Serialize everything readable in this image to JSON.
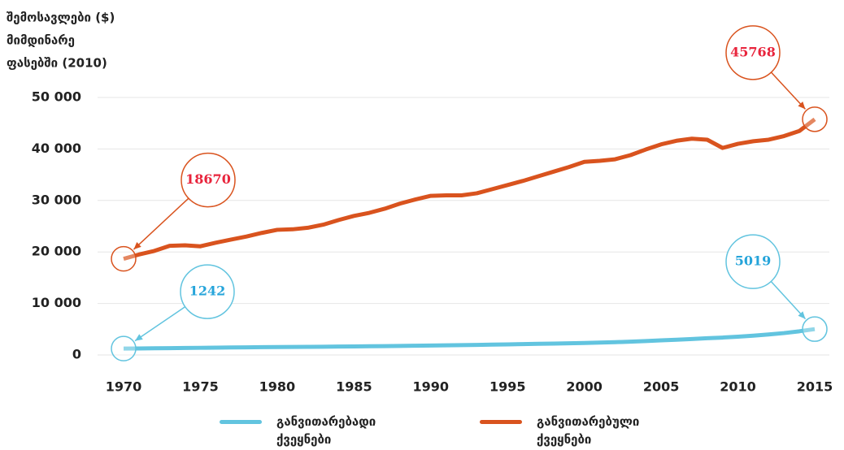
{
  "chart_data": {
    "type": "line",
    "ylabel": [
      "შემოსავლები ($)",
      "მიმდინარე",
      "ფასებში (2010)"
    ],
    "x": [
      1970,
      1971,
      1972,
      1973,
      1974,
      1975,
      1976,
      1977,
      1978,
      1979,
      1980,
      1981,
      1982,
      1983,
      1984,
      1985,
      1986,
      1987,
      1988,
      1989,
      1990,
      1991,
      1992,
      1993,
      1994,
      1995,
      1996,
      1997,
      1998,
      1999,
      2000,
      2001,
      2002,
      2003,
      2004,
      2005,
      2006,
      2007,
      2008,
      2009,
      2010,
      2011,
      2012,
      2013,
      2014,
      2015
    ],
    "series": [
      {
        "name": "განვითარებადი ქვეყნები",
        "color": "#62c4df",
        "label_color": "#25a4da",
        "values": [
          1242,
          1270,
          1300,
          1330,
          1360,
          1390,
          1420,
          1450,
          1480,
          1510,
          1540,
          1560,
          1580,
          1600,
          1630,
          1660,
          1690,
          1720,
          1760,
          1800,
          1840,
          1880,
          1920,
          1960,
          2010,
          2060,
          2110,
          2160,
          2210,
          2260,
          2330,
          2400,
          2480,
          2580,
          2700,
          2830,
          2960,
          3100,
          3250,
          3380,
          3550,
          3750,
          3980,
          4250,
          4600,
          5019
        ]
      },
      {
        "name": "განვითარებული ქვეყნები",
        "color": "#d9531e",
        "label_color": "#e8243c",
        "values": [
          18670,
          19500,
          20200,
          21200,
          21300,
          21100,
          21800,
          22400,
          23000,
          23700,
          24300,
          24400,
          24700,
          25300,
          26200,
          27000,
          27600,
          28400,
          29400,
          30200,
          30900,
          31000,
          31000,
          31400,
          32200,
          33000,
          33800,
          34700,
          35600,
          36500,
          37500,
          37700,
          38000,
          38800,
          39900,
          40900,
          41600,
          42000,
          41800,
          40200,
          41000,
          41500,
          41800,
          42500,
          43500,
          45768
        ]
      }
    ],
    "xlim": [
      1970,
      2015
    ],
    "xticks": [
      1970,
      1975,
      1980,
      1985,
      1990,
      1995,
      2000,
      2005,
      2010,
      2015
    ],
    "ylim": [
      0,
      50000
    ],
    "yticks": [
      0,
      {
        "value": 10000,
        "label": "10 000"
      },
      {
        "value": 20000,
        "label": "20 000"
      },
      {
        "value": 30000,
        "label": "30 000"
      },
      {
        "value": 40000,
        "label": "40 000"
      },
      {
        "value": 50000,
        "label": "50 000"
      }
    ],
    "grid": true,
    "legend": "bottom"
  }
}
